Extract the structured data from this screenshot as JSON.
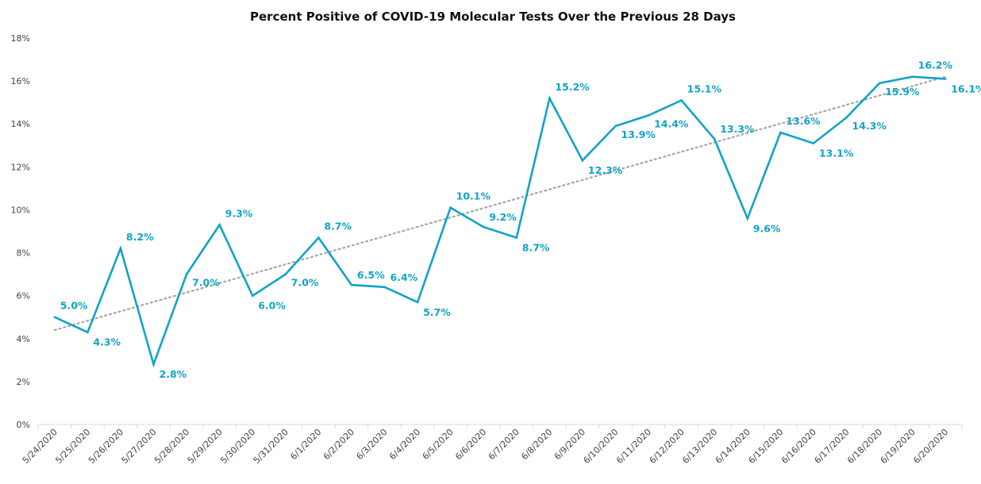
{
  "chart_data": {
    "type": "line",
    "title": "Percent Positive of COVID-19 Molecular Tests Over the Previous 28 Days",
    "xlabel": "",
    "ylabel": "",
    "ylim": [
      0,
      18
    ],
    "y_ticks": [
      0,
      2,
      4,
      6,
      8,
      10,
      12,
      14,
      16,
      18
    ],
    "y_tick_suffix": "%",
    "categories": [
      "5/24/2020",
      "5/25/2020",
      "5/26/2020",
      "5/27/2020",
      "5/28/2020",
      "5/29/2020",
      "5/30/2020",
      "5/31/2020",
      "6/1/2020",
      "6/2/2020",
      "6/3/2020",
      "6/4/2020",
      "6/5/2020",
      "6/6/2020",
      "6/7/2020",
      "6/8/2020",
      "6/9/2020",
      "6/10/2020",
      "6/11/2020",
      "6/12/2020",
      "6/13/2020",
      "6/14/2020",
      "6/15/2020",
      "6/16/2020",
      "6/17/2020",
      "6/18/2020",
      "6/19/2020",
      "6/20/2020"
    ],
    "series": [
      {
        "values": [
          5.0,
          4.3,
          8.2,
          2.8,
          7.0,
          9.3,
          6.0,
          7.0,
          8.7,
          6.5,
          6.4,
          5.7,
          10.1,
          9.2,
          8.7,
          15.2,
          12.3,
          13.9,
          14.4,
          15.1,
          13.3,
          9.6,
          13.6,
          13.1,
          14.3,
          15.9,
          16.2,
          16.1
        ],
        "labels": [
          "5.0%",
          "4.3%",
          "8.2%",
          "2.8%",
          "7.0%",
          "9.3%",
          "6.0%",
          "7.0%",
          "8.7%",
          "6.5%",
          "6.4%",
          "5.7%",
          "10.1%",
          "9.2%",
          "8.7%",
          "15.2%",
          "12.3%",
          "13.9%",
          "14.4%",
          "15.1%",
          "13.3%",
          "9.6%",
          "13.6%",
          "13.1%",
          "14.3%",
          "15.9%",
          "16.2%",
          "16.1%"
        ],
        "color": "#12a3c8"
      }
    ],
    "trendline": {
      "style": "dotted",
      "color": "#a6a6a6",
      "start": 4.4,
      "end": 16.2
    },
    "grid": false,
    "legend": "none"
  }
}
